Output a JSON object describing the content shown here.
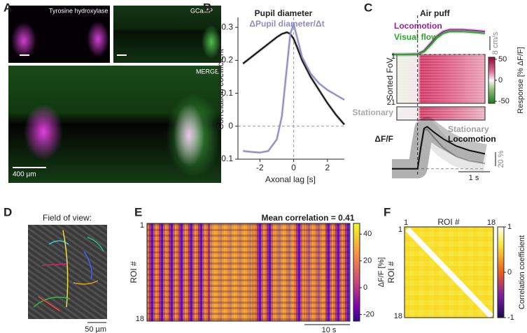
{
  "figure": {
    "panel_labels": [
      "A",
      "B",
      "C",
      "D",
      "E",
      "F"
    ]
  },
  "panel_a": {
    "images": [
      "Tyrosine hydroxylase",
      "GCaMP",
      "MERGE"
    ],
    "scalebar": "400 µm"
  },
  "chart_data": [
    {
      "type": "line",
      "title": "Pupil diameter",
      "subtitle": "ΔPupil diameter/Δt",
      "xlabel": "Axonal lag [s]",
      "ylabel": "Correlation coefficient",
      "x": [
        -3,
        -2.5,
        -2,
        -1.5,
        -1,
        -0.7,
        -0.4,
        -0.2,
        0,
        0.2,
        0.5,
        1,
        1.5,
        2,
        2.5,
        3
      ],
      "series": [
        {
          "name": "Pupil diameter",
          "color": "#111111",
          "values": [
            0.19,
            0.21,
            0.23,
            0.25,
            0.27,
            0.28,
            0.285,
            0.28,
            0.265,
            0.24,
            0.2,
            0.15,
            0.11,
            0.07,
            0.035,
            0.005
          ]
        },
        {
          "name": "ΔPupil diameter/Δt",
          "color": "#8f8cbf",
          "values": [
            -0.075,
            -0.078,
            -0.08,
            -0.075,
            -0.04,
            0.03,
            0.18,
            0.28,
            0.31,
            0.27,
            0.21,
            0.16,
            0.13,
            0.11,
            0.095,
            0.08
          ]
        }
      ],
      "xlim": [
        -3.3,
        3
      ],
      "ylim": [
        -0.1,
        0.33
      ],
      "xticks": [
        -2,
        0,
        2
      ],
      "yticks": [
        -0.1,
        0,
        0.1,
        0.2,
        0.3
      ]
    },
    {
      "type": "line",
      "x": [
        -0.8,
        -0.4,
        0,
        0.2,
        0.4,
        0.6,
        0.8,
        1.0,
        1.4,
        1.8,
        2.1
      ],
      "series": [
        {
          "name": "Locomotion",
          "color": "#9b1f9b",
          "values": [
            0,
            0,
            0.2,
            2,
            6,
            10,
            12.5,
            13.5,
            13.5,
            13,
            12.5
          ]
        },
        {
          "name": "Visual flow",
          "color": "#2ca02c",
          "values": [
            0,
            0,
            0.1,
            1.5,
            5,
            9,
            11.5,
            12.5,
            12.5,
            12,
            11.5
          ]
        }
      ],
      "xlim": [
        -0.8,
        2.1
      ],
      "ylim": [
        0,
        16
      ],
      "scalebar_y": "8 cm/s"
    },
    {
      "type": "line",
      "ylabel": "ΔF/F",
      "x": [
        -0.8,
        -0.4,
        0,
        0.1,
        0.2,
        0.3,
        0.5,
        0.8,
        1.2,
        1.6,
        2.1
      ],
      "series": [
        {
          "name": "Stationary",
          "color": "#a0a0a0",
          "values": [
            0,
            0,
            0,
            22,
            44,
            45,
            36,
            24,
            14,
            9,
            6
          ]
        },
        {
          "name": "Locomotion",
          "color": "#111111",
          "values": [
            0,
            0,
            0,
            25,
            46,
            48,
            42,
            34,
            26,
            21,
            17
          ]
        }
      ],
      "xlim": [
        -0.8,
        2.1
      ],
      "ylim": [
        -5,
        50
      ],
      "scalebar_y": "20 %",
      "scalebar_x": "1 s"
    }
  ],
  "panel_c": {
    "title": "Air puff",
    "heatmap_ylabel": "Sorted FoV",
    "heatmap_yticks": [
      1,
      21
    ],
    "stationary_label": "Stationary",
    "colorbar": {
      "lim": [
        -55,
        55
      ],
      "ticks": [
        50,
        0,
        -50
      ],
      "label": "Response [% ΔF/F]"
    }
  },
  "panel_d": {
    "title": "Field of view:",
    "scalebar": "50 µm"
  },
  "panel_e": {
    "title": "Mean correlation = 0.41",
    "ylabel": "ROI #",
    "yticks": [
      1,
      18
    ],
    "scalebar": "10 s",
    "colorbar": {
      "lim": [
        -25,
        48
      ],
      "ticks": [
        40,
        20,
        0,
        -20
      ],
      "label": "ΔF/F [%]"
    }
  },
  "panel_f": {
    "xlabel": "ROI #",
    "xticks": [
      1,
      18
    ],
    "ylabel": "ROI #",
    "yticks": [
      1,
      18
    ],
    "colorbar": {
      "lim": [
        -1,
        1
      ],
      "ticks": [
        1,
        0,
        -1
      ],
      "label": "Correlation coefficient"
    }
  }
}
